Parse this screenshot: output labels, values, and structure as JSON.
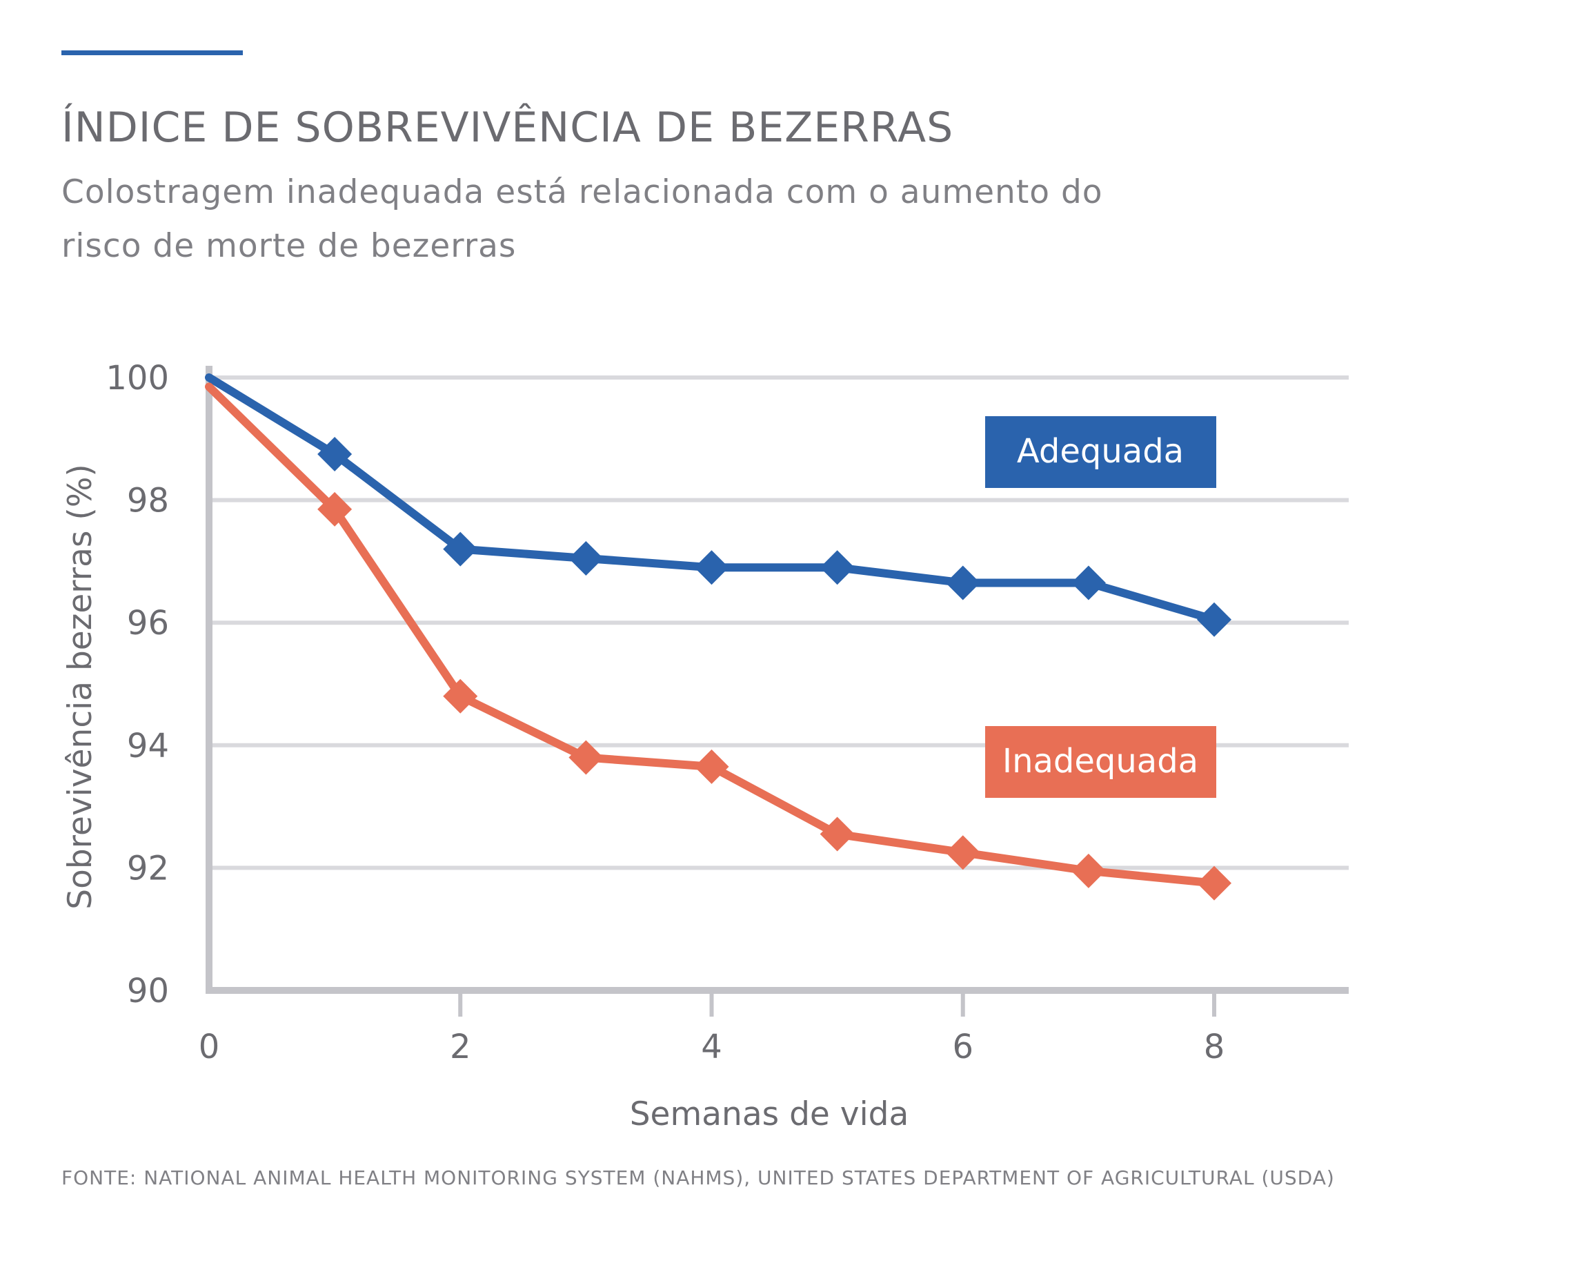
{
  "header": {
    "title": "ÍNDICE DE SOBREVIVÊNCIA DE BEZERRAS",
    "subtitle": "Colostragem inadequada está relacionada com o aumento do risco de morte de bezerras"
  },
  "footer": {
    "source": "FONTE: NATIONAL ANIMAL HEALTH MONITORING SYSTEM (NAHMS), UNITED STATES DEPARTMENT OF AGRICULTURAL (USDA)"
  },
  "colors": {
    "accent": "#2a63ad",
    "adequada": "#2a63ad",
    "inadequada": "#e86f55",
    "grid": "#d9d9dd",
    "axis": "#c4c4c9"
  },
  "chart_data": {
    "type": "line",
    "title": "ÍNDICE DE SOBREVIVÊNCIA DE BEZERRAS",
    "xlabel": "Semanas de vida",
    "ylabel": "Sobrevivência bezerras (%)",
    "xlim": [
      0,
      9
    ],
    "ylim": [
      90,
      100
    ],
    "xticks": [
      0,
      2,
      4,
      6,
      8
    ],
    "yticks": [
      90,
      92,
      94,
      96,
      98,
      100
    ],
    "grid": true,
    "legend_placement": "inline-right",
    "series": [
      {
        "name": "Adequada",
        "color": "#2a63ad",
        "points": [
          [
            0,
            100
          ],
          [
            1,
            98.75
          ],
          [
            2,
            97.2
          ],
          [
            3,
            97.05
          ],
          [
            4,
            96.9
          ],
          [
            5,
            96.9
          ],
          [
            6,
            96.65
          ],
          [
            7,
            96.65
          ],
          [
            8,
            96.05
          ]
        ]
      },
      {
        "name": "Inadequada",
        "color": "#e86f55",
        "points": [
          [
            0,
            99.85
          ],
          [
            1,
            97.85
          ],
          [
            2,
            94.8
          ],
          [
            3,
            93.8
          ],
          [
            4,
            93.65
          ],
          [
            5,
            92.55
          ],
          [
            6,
            92.25
          ],
          [
            7,
            91.95
          ],
          [
            8,
            91.75
          ]
        ]
      }
    ]
  }
}
